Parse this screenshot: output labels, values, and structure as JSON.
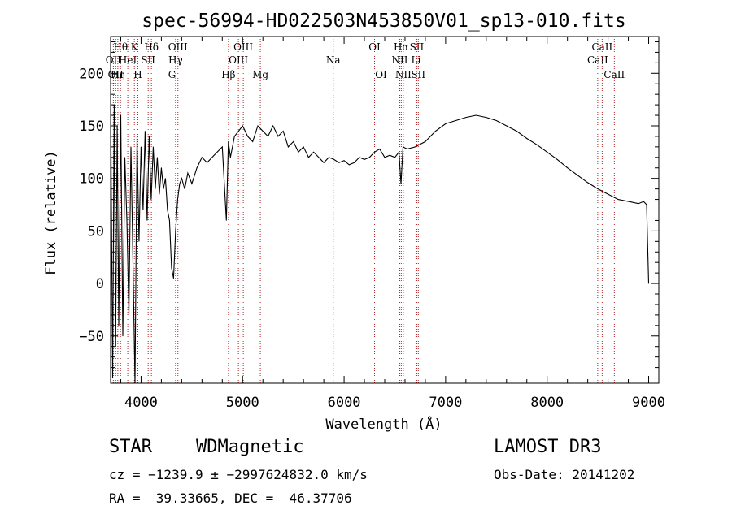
{
  "chart_data": {
    "type": "line",
    "title": "spec-56994-HD022503N453850V01_sp13-010.fits",
    "xlabel": "Wavelength (Å)",
    "ylabel": "Flux (relative)",
    "xlim": [
      3700,
      9100
    ],
    "ylim": [
      -95,
      235
    ],
    "xticks": [
      4000,
      5000,
      6000,
      7000,
      8000,
      9000
    ],
    "xtick_labels": [
      "4000",
      "5000",
      "6000",
      "7000",
      "8000",
      "9000"
    ],
    "yticks": [
      -50,
      0,
      50,
      100,
      150,
      200
    ],
    "ytick_labels": [
      "−50",
      "0",
      "50",
      "100",
      "150",
      "200"
    ],
    "series": [
      {
        "name": "flux",
        "x": [
          3700,
          3720,
          3735,
          3750,
          3765,
          3780,
          3800,
          3820,
          3840,
          3860,
          3880,
          3900,
          3920,
          3940,
          3960,
          3980,
          4000,
          4020,
          4040,
          4060,
          4080,
          4100,
          4120,
          4140,
          4160,
          4180,
          4200,
          4220,
          4240,
          4260,
          4280,
          4300,
          4320,
          4340,
          4360,
          4380,
          4400,
          4430,
          4460,
          4500,
          4550,
          4600,
          4650,
          4700,
          4750,
          4800,
          4840,
          4860,
          4880,
          4920,
          4960,
          5000,
          5050,
          5100,
          5150,
          5200,
          5250,
          5300,
          5350,
          5400,
          5450,
          5500,
          5550,
          5600,
          5650,
          5700,
          5750,
          5800,
          5850,
          5900,
          5950,
          6000,
          6050,
          6100,
          6150,
          6200,
          6250,
          6300,
          6350,
          6400,
          6450,
          6500,
          6540,
          6560,
          6580,
          6620,
          6700,
          6800,
          6900,
          7000,
          7100,
          7200,
          7300,
          7400,
          7500,
          7600,
          7700,
          7800,
          7900,
          8000,
          8100,
          8200,
          8300,
          8400,
          8500,
          8600,
          8700,
          8800,
          8900,
          8950,
          8980,
          9000
        ],
        "y": [
          180,
          -90,
          170,
          -60,
          150,
          -40,
          160,
          -50,
          120,
          60,
          -30,
          130,
          20,
          -95,
          140,
          40,
          130,
          70,
          145,
          60,
          140,
          80,
          130,
          90,
          120,
          85,
          110,
          90,
          100,
          70,
          60,
          15,
          5,
          50,
          80,
          95,
          100,
          90,
          105,
          95,
          110,
          120,
          115,
          120,
          125,
          130,
          60,
          135,
          120,
          140,
          145,
          150,
          140,
          135,
          150,
          145,
          140,
          150,
          140,
          145,
          130,
          135,
          125,
          130,
          120,
          125,
          120,
          115,
          120,
          118,
          115,
          117,
          113,
          115,
          120,
          118,
          120,
          125,
          128,
          120,
          122,
          120,
          125,
          95,
          130,
          128,
          130,
          135,
          145,
          152,
          155,
          158,
          160,
          158,
          155,
          150,
          145,
          138,
          132,
          125,
          118,
          110,
          103,
          96,
          90,
          85,
          80,
          78,
          76,
          78,
          75,
          0
        ]
      }
    ],
    "lines": [
      {
        "wavelength": 3727,
        "label": "OII",
        "row": 2
      },
      {
        "wavelength": 3750,
        "label": "OII",
        "row": 3
      },
      {
        "wavelength": 3771,
        "label": "Hη",
        "row": 3
      },
      {
        "wavelength": 3798,
        "label": "Hθ",
        "row": 1
      },
      {
        "wavelength": 3869,
        "label": "HeI",
        "row": 2
      },
      {
        "wavelength": 3934,
        "label": "K",
        "row": 1
      },
      {
        "wavelength": 3968,
        "label": "H",
        "row": 3
      },
      {
        "wavelength": 4070,
        "label": "SII",
        "row": 2
      },
      {
        "wavelength": 4102,
        "label": "Hδ",
        "row": 1
      },
      {
        "wavelength": 4305,
        "label": "G",
        "row": 3
      },
      {
        "wavelength": 4340,
        "label": "Hγ",
        "row": 2
      },
      {
        "wavelength": 4363,
        "label": "OIII",
        "row": 1
      },
      {
        "wavelength": 4861,
        "label": "Hβ",
        "row": 3
      },
      {
        "wavelength": 4959,
        "label": "OIII",
        "row": 2
      },
      {
        "wavelength": 5007,
        "label": "OIII",
        "row": 1
      },
      {
        "wavelength": 5175,
        "label": "Mg",
        "row": 3
      },
      {
        "wavelength": 5893,
        "label": "Na",
        "row": 2
      },
      {
        "wavelength": 6300,
        "label": "OI",
        "row": 1
      },
      {
        "wavelength": 6364,
        "label": "OI",
        "row": 3
      },
      {
        "wavelength": 6548,
        "label": "NII",
        "row": 2
      },
      {
        "wavelength": 6563,
        "label": "Hα",
        "row": 1
      },
      {
        "wavelength": 6583,
        "label": "NII",
        "row": 3
      },
      {
        "wavelength": 6708,
        "label": "Li",
        "row": 2
      },
      {
        "wavelength": 6716,
        "label": "SII",
        "row": 1
      },
      {
        "wavelength": 6731,
        "label": "SII",
        "row": 3
      },
      {
        "wavelength": 8498,
        "label": "CaII",
        "row": 2
      },
      {
        "wavelength": 8542,
        "label": "CaII",
        "row": 1
      },
      {
        "wavelength": 8662,
        "label": "CaII",
        "row": 3
      }
    ]
  },
  "info": {
    "class": "STAR",
    "subclass": "WDMagnetic",
    "survey": "LAMOST DR3",
    "redshift": "cz = −1239.9 ± −2997624832.0 km/s",
    "obs_date": "Obs-Date: 20141202",
    "coords": "RA =  39.33665, DEC =  46.37706"
  }
}
